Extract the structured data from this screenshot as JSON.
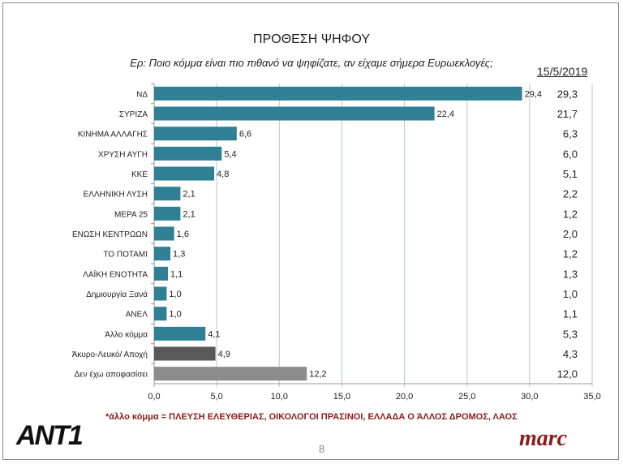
{
  "chart_data": {
    "type": "bar",
    "orientation": "horizontal",
    "title": "ΠΡΟΘΕΣΗ ΨΗΦΟΥ",
    "subtitle": "Ερ: Ποιο κόμμα είναι πιο πιθανό να ψηφίζατε, αν είχαμε σήμερα Ευρωεκλογές;",
    "categories": [
      "ΝΔ",
      "ΣΥΡΙΖΑ",
      "ΚΙΝΗΜΑ ΑΛΛΑΓΗΣ",
      "ΧΡΥΣΗ ΑΥΓΗ",
      "ΚΚΕ",
      "ΕΛΛΗΝΙΚΗ ΛΥΣΗ",
      "ΜΕΡΑ 25",
      "ΕΝΩΣΗ ΚΕΝΤΡΩΩΝ",
      "ΤΟ ΠΟΤΑΜΙ",
      "ΛΑΪΚΗ ΕΝΟΤΗΤΑ",
      "Δημιουργία Ξανά",
      "ΑΝΕΛ",
      "Άλλο κόμμα",
      "Άκυρο-Λευκό/ Αποχή",
      "Δεν έχω αποφασίσει"
    ],
    "values": [
      29.4,
      22.4,
      6.6,
      5.4,
      4.8,
      2.1,
      2.1,
      1.6,
      1.3,
      1.1,
      1.0,
      1.0,
      4.1,
      4.9,
      12.2
    ],
    "value_labels": [
      "29,4",
      "22,4",
      "6,6",
      "5,4",
      "4,8",
      "2,1",
      "2,1",
      "1,6",
      "1,3",
      "1,1",
      "1,0",
      "1,0",
      "4,1",
      "4,9",
      "12,2"
    ],
    "bar_colors": [
      "#2f7f95",
      "#2f7f95",
      "#2f7f95",
      "#2f7f95",
      "#2f7f95",
      "#2f7f95",
      "#2f7f95",
      "#2f7f95",
      "#2f7f95",
      "#2f7f95",
      "#2f7f95",
      "#2f7f95",
      "#2f7f95",
      "#595959",
      "#8c8c8c"
    ],
    "comparison_column": {
      "header": "15/5/2019",
      "values": [
        "29,3",
        "21,7",
        "6,3",
        "6,0",
        "5,1",
        "2,2",
        "1,2",
        "2,0",
        "1,2",
        "1,3",
        "1,0",
        "1,1",
        "5,3",
        "4,3",
        "12,0"
      ]
    },
    "xlim": [
      0,
      35
    ],
    "xticks": [
      "0,0",
      "5,0",
      "10,0",
      "15,0",
      "20,0",
      "25,0",
      "30,0",
      "35,0"
    ],
    "grid": "vertical"
  },
  "footer": {
    "footnote": "*άλλο κόμμα = ΠΛΕΥΣΗ ΕΛΕΥΘΕΡΙΑΣ, ΟΙΚΟΛΟΓΟΙ ΠΡΑΣΙΝΟΙ, ΕΛΛΑΔΑ Ο ΆΛΛΟΣ ΔΡΟΜΟΣ, ΛΑΟΣ",
    "page": "8",
    "logo_left": "ANT1",
    "logo_right": "marc"
  }
}
